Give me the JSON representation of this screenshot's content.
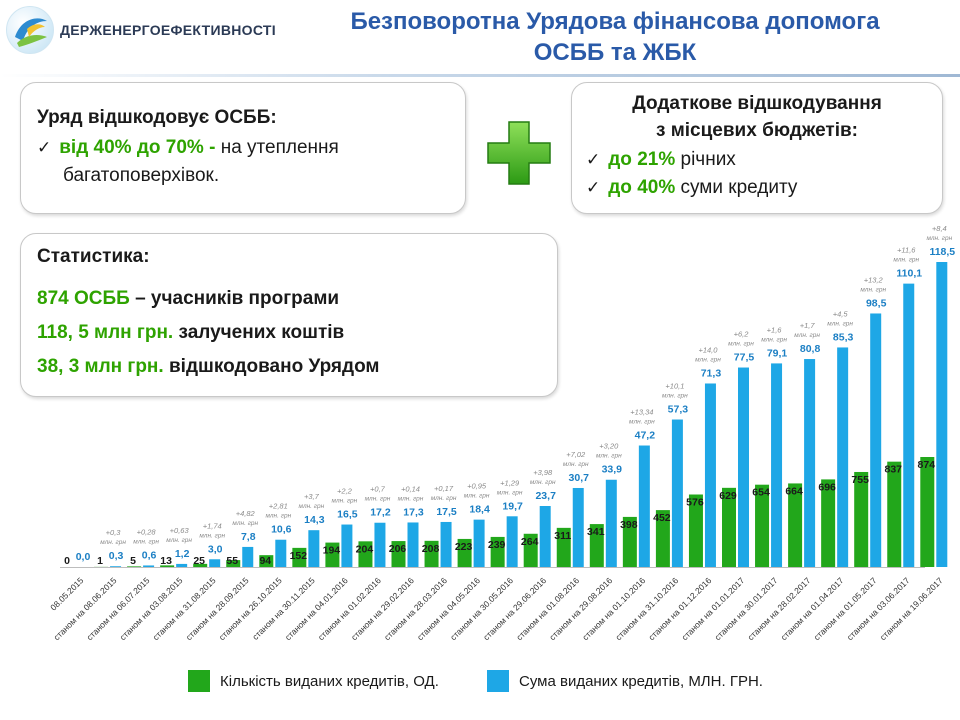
{
  "header": {
    "org_name": "ДЕРЖЕНЕРГОЕФЕКТИВНОСТІ",
    "title_line1": "Безповоротна Урядова фінансова допомога",
    "title_line2": "ОСББ та ЖБК"
  },
  "left_box": {
    "heading": "Уряд відшкодовує ОСББ:",
    "item_green": "від 40%  до 70%  -",
    "item_rest": " на утеплення",
    "item_line2": "багатоповерхівок."
  },
  "right_box": {
    "heading_line1": "Додаткове відшкодування",
    "heading_line2": "з місцевих бюджетів:",
    "item1_green": "до 21%",
    "item1_rest": " річних",
    "item2_green": "до 40%",
    "item2_rest": " суми кредиту"
  },
  "stats_box": {
    "heading": "Статистика:",
    "line1_green": "874 ОСББ",
    "line1_rest": " – учасників програми",
    "line2_green": "118, 5 млн грн.",
    "line2_rest": " залучених коштів",
    "line3_green": "38, 3 млн грн.",
    "line3_rest": " відшкодовано Урядом"
  },
  "colors": {
    "green_series": "#22a71b",
    "blue_series": "#1ea7e6",
    "accent_green": "#2ea300",
    "title_blue": "#2a5aa8",
    "increment_text": "#8a8a8a"
  },
  "icons": {
    "logo": "agency-logo",
    "plus": "green-plus-icon",
    "check": "checkmark-icon"
  },
  "chart_data": {
    "type": "bar",
    "categories": [
      "08.05.2015",
      "станом на 08.06.2015",
      "станом на 06.07.2015",
      "станом на 03.08.2015",
      "станом на 31.08.2015",
      "станом на 28.09.2015",
      "станом на 26.10.2015",
      "станом на 30.11.2015",
      "станом на 04.01.2016",
      "станом на 01.02.2016",
      "станом на 29.02.2016",
      "станом на 28.03.2016",
      "станом на 04.05.2016",
      "станом на 30.05.2016",
      "станом на 29.06.2016",
      "станом на 01.08.2016",
      "станом на 29.08.2016",
      "станом на 01.10.2016",
      "станом на 31.10.2016",
      "станом на 01.12.2016",
      "станом на 01.01.2017",
      "станом на 30.01.2017",
      "станом на 28.02.2017",
      "станом на 01.04.2017",
      "станом на 01.05.2017",
      "станом на 03.06.2017",
      "станом на 19.06.2017"
    ],
    "series": [
      {
        "name": "Кількість виданих кредитів, ОД.",
        "values": [
          0,
          1,
          5,
          13,
          25,
          55,
          94,
          152,
          194,
          204,
          206,
          208,
          223,
          239,
          264,
          311,
          341,
          398,
          452,
          576,
          629,
          654,
          664,
          696,
          755,
          837,
          874
        ],
        "labels": [
          "0",
          "1",
          "5",
          "13",
          "25",
          "55",
          "94",
          "152",
          "194",
          "204",
          "206",
          "208",
          "223",
          "239",
          "264",
          "311",
          "341",
          "398",
          "452",
          "576",
          "629",
          "654",
          "664",
          "696",
          "755",
          "837",
          "874"
        ]
      },
      {
        "name": "Сума виданих кредитів, МЛН. ГРН.",
        "values": [
          0,
          0.3,
          0.6,
          1.2,
          3.0,
          7.8,
          10.6,
          14.3,
          16.5,
          17.2,
          17.3,
          17.5,
          18.4,
          19.7,
          23.7,
          30.7,
          33.9,
          47.2,
          57.3,
          71.3,
          77.5,
          79.1,
          80.8,
          85.3,
          98.5,
          110.1,
          118.5
        ],
        "labels": [
          "0,0",
          "0,3",
          "0,6",
          "1,2",
          "3,0",
          "7,8",
          "10,6",
          "14,3",
          "16,5",
          "17,2",
          "17,3",
          "17,5",
          "18,4",
          "19,7",
          "23,7",
          "30,7",
          "33,9",
          "47,2",
          "57,3",
          "71,3",
          "77,5",
          "79,1",
          "80,8",
          "85,3",
          "98,5",
          "110,1",
          "118,5"
        ]
      }
    ],
    "increments": [
      "",
      "+0,3",
      "+0,28",
      "+0,63",
      "+1,74",
      "+4,82",
      "+2,81",
      "+3,7",
      "+2,2",
      "+0,7",
      "+0,14",
      "+0,17",
      "+0,95",
      "+1,29",
      "+3,98",
      "+7,02",
      "+3,20",
      "+13,34",
      "+10,1",
      "+14,0",
      "+6,2",
      "+1,6",
      "+1,7",
      "+4,5",
      "+13,2",
      "+11,6",
      "+8,4"
    ],
    "increment_unit": "млн. грн",
    "legend_position": "bottom",
    "grid": false
  }
}
